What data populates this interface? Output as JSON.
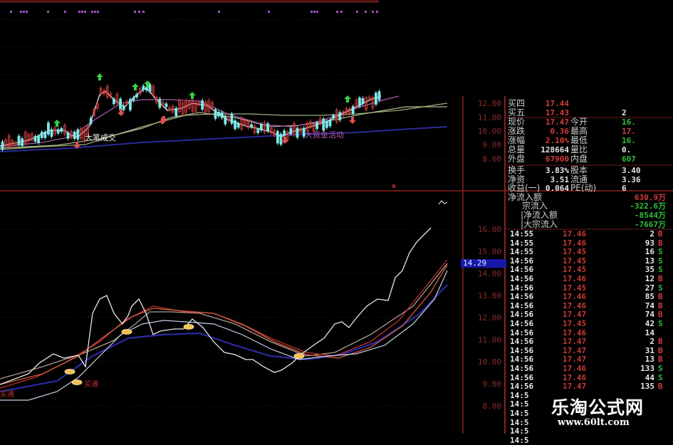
{
  "upper_chart": {
    "axis_labels": [
      "12.00",
      "11.00",
      "10.00",
      "9.00",
      "8.00"
    ],
    "annotations": {
      "big_trade": "大笔成交",
      "big_money": "大资金活动"
    }
  },
  "lower_chart": {
    "axis_labels": [
      "16.00",
      "15.00",
      "14.00",
      "13.00",
      "12.00",
      "11.00",
      "10.00",
      "9.00",
      "8.00"
    ],
    "current_value": "14.29",
    "annotations": {
      "buy_1": "买通",
      "buy_2": "买通"
    }
  },
  "quote": {
    "rows": [
      {
        "label": "买四",
        "value": "17.44",
        "value_color": "red",
        "label2": "",
        "value2": "",
        "value2_color": ""
      },
      {
        "label": "买五",
        "value": "17.43",
        "value_color": "red",
        "label2": "",
        "value2": "2",
        "value2_color": "white"
      },
      {
        "label": "现价",
        "value": "17.47",
        "value_color": "red",
        "label2": "今开",
        "value2": "16.",
        "value2_color": "green"
      },
      {
        "label": "涨跌",
        "value": "0.36",
        "value_color": "red",
        "label2": "最高",
        "value2": "17.",
        "value2_color": "red"
      },
      {
        "label": "涨幅",
        "value": "2.10%",
        "value_color": "red",
        "label2": "最低",
        "value2": "16.",
        "value2_color": "green"
      },
      {
        "label": "总量",
        "value": "128664",
        "value_color": "white",
        "label2": "量比",
        "value2": "0.",
        "value2_color": "white"
      },
      {
        "label": "外盘",
        "value": "67900",
        "value_color": "red",
        "label2": "内盘",
        "value2": "607",
        "value2_color": "green"
      },
      {
        "label": "换手",
        "value": "3.83%",
        "value_color": "white",
        "label2": "股本",
        "value2": "3.40",
        "value2_color": "white"
      },
      {
        "label": "净资",
        "value": "3.51",
        "value_color": "white",
        "label2": "流通",
        "value2": "3.36",
        "value2_color": "white"
      },
      {
        "label": "收益(一)",
        "value": "0.064",
        "value_color": "white",
        "label2": "PE(动)",
        "value2": "6",
        "value2_color": "white"
      }
    ]
  },
  "flow": [
    {
      "label": "净流入额",
      "value": "630.9万",
      "color": "red",
      "indent": 0
    },
    {
      "label": "宗流入",
      "value": "-322.6万",
      "color": "green",
      "indent": 1
    },
    {
      "label": "|净流入额",
      "value": "-8544万",
      "color": "green",
      "indent": 2
    },
    {
      "label": "|大宗流入",
      "value": "-7667万",
      "color": "green",
      "indent": 2
    }
  ],
  "trades": [
    {
      "time": "14:55",
      "price": "17.46",
      "volume": "2",
      "side": "B"
    },
    {
      "time": "14:55",
      "price": "17.46",
      "volume": "93",
      "side": "B"
    },
    {
      "time": "14:55",
      "price": "17.45",
      "volume": "16",
      "side": "S"
    },
    {
      "time": "14:56",
      "price": "17.45",
      "volume": "13",
      "side": "S"
    },
    {
      "time": "14:56",
      "price": "17.45",
      "volume": "35",
      "side": "S"
    },
    {
      "time": "14:56",
      "price": "17.46",
      "volume": "12",
      "side": "B"
    },
    {
      "time": "14:56",
      "price": "17.45",
      "volume": "27",
      "side": "S"
    },
    {
      "time": "14:56",
      "price": "17.46",
      "volume": "85",
      "side": "B"
    },
    {
      "time": "14:56",
      "price": "17.46",
      "volume": "74",
      "side": "B"
    },
    {
      "time": "14:56",
      "price": "17.47",
      "volume": "74",
      "side": "B"
    },
    {
      "time": "14:56",
      "price": "17.45",
      "volume": "42",
      "side": "S"
    },
    {
      "time": "14:56",
      "price": "17.46",
      "volume": "14",
      "side": ""
    },
    {
      "time": "14:56",
      "price": "17.47",
      "volume": "2",
      "side": "B"
    },
    {
      "time": "14:56",
      "price": "17.47",
      "volume": "31",
      "side": "B"
    },
    {
      "time": "14:56",
      "price": "17.47",
      "volume": "13",
      "side": "B"
    },
    {
      "time": "14:56",
      "price": "17.46",
      "volume": "133",
      "side": "S"
    },
    {
      "time": "14:56",
      "price": "17.46",
      "volume": "44",
      "side": "S"
    },
    {
      "time": "14:56",
      "price": "17.47",
      "volume": "135",
      "side": "B"
    },
    {
      "time": "14:5",
      "price": "",
      "volume": "",
      "side": ""
    },
    {
      "time": "14:5",
      "price": "",
      "volume": "",
      "side": ""
    },
    {
      "time": "14:5",
      "price": "",
      "volume": "",
      "side": ""
    },
    {
      "time": "14:5",
      "price": "",
      "volume": "",
      "side": ""
    },
    {
      "time": "14:5",
      "price": "",
      "volume": "",
      "side": ""
    },
    {
      "time": "14:5",
      "price": "",
      "volume": "",
      "side": ""
    }
  ],
  "watermark": {
    "title": "乐淘公式网",
    "url": "www.60lt.com"
  },
  "colors": {
    "up": "#d43c3c",
    "down": "#7fe8e8",
    "buy": "#d43c3c",
    "sell": "#2fbf3a",
    "grid": "#8a2020",
    "highlight": "#1818a8"
  }
}
